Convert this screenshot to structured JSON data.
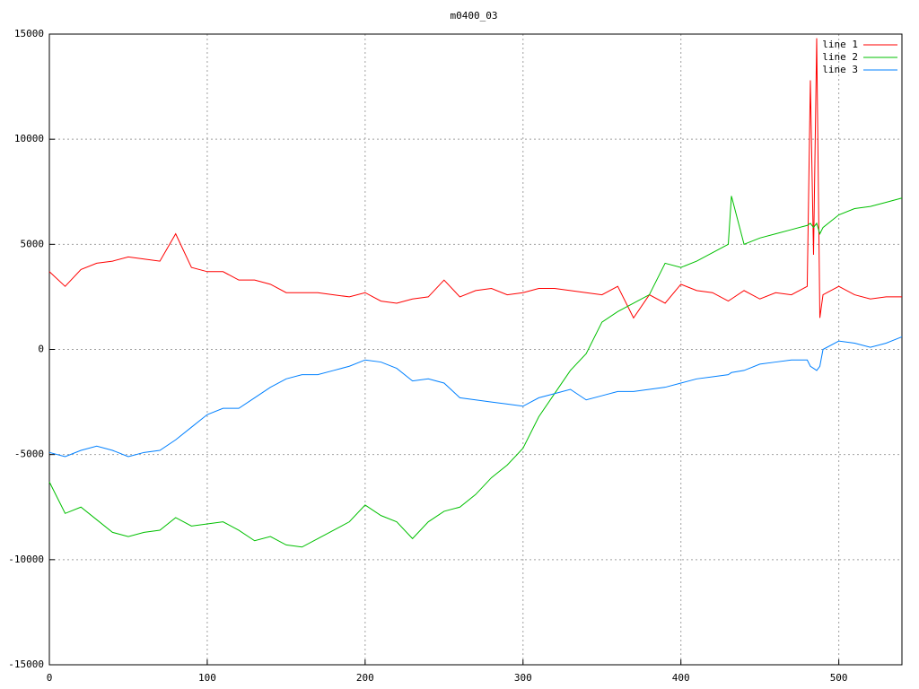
{
  "chart_data": {
    "type": "line",
    "title": "m0400_03",
    "x": [
      0,
      10,
      20,
      30,
      40,
      50,
      60,
      70,
      80,
      90,
      100,
      110,
      120,
      130,
      140,
      150,
      160,
      170,
      180,
      190,
      200,
      210,
      220,
      230,
      240,
      250,
      260,
      270,
      280,
      290,
      300,
      310,
      320,
      330,
      340,
      350,
      360,
      370,
      380,
      390,
      400,
      410,
      420,
      430,
      432,
      440,
      450,
      460,
      470,
      480,
      482,
      484,
      486,
      488,
      490,
      500,
      510,
      520,
      530,
      540
    ],
    "series": [
      {
        "name": "line 1",
        "color": "#ff0000",
        "values": [
          3700,
          3000,
          3800,
          4100,
          4200,
          4400,
          4300,
          4200,
          5500,
          3900,
          3700,
          3700,
          3300,
          3300,
          3100,
          2700,
          2700,
          2700,
          2600,
          2500,
          2700,
          2300,
          2200,
          2400,
          2500,
          3300,
          2500,
          2800,
          2900,
          2600,
          2700,
          2900,
          2900,
          2800,
          2700,
          2600,
          3000,
          1500,
          2600,
          2200,
          3100,
          2800,
          2700,
          2300,
          2400,
          2800,
          2400,
          2700,
          2600,
          3000,
          12800,
          4500,
          14800,
          1500,
          2600,
          3000,
          2600,
          2400,
          2500,
          2500
        ]
      },
      {
        "name": "line 2",
        "color": "#00c000",
        "values": [
          -6300,
          -7800,
          -7500,
          -8100,
          -8700,
          -8900,
          -8700,
          -8600,
          -8000,
          -8400,
          -8300,
          -8200,
          -8600,
          -9100,
          -8900,
          -9300,
          -9400,
          -9000,
          -8600,
          -8200,
          -7400,
          -7900,
          -8200,
          -9000,
          -8200,
          -7700,
          -7500,
          -6900,
          -6100,
          -5500,
          -4700,
          -3200,
          -2100,
          -1000,
          -200,
          1300,
          1800,
          2200,
          2600,
          4100,
          3900,
          4200,
          4600,
          5000,
          7300,
          5000,
          5300,
          5500,
          5700,
          5900,
          6000,
          5800,
          6000,
          5500,
          5800,
          6400,
          6700,
          6800,
          7000,
          7200
        ]
      },
      {
        "name": "line 3",
        "color": "#0080ff",
        "values": [
          -4900,
          -5100,
          -4800,
          -4600,
          -4800,
          -5100,
          -4900,
          -4800,
          -4300,
          -3700,
          -3100,
          -2800,
          -2800,
          -2300,
          -1800,
          -1400,
          -1200,
          -1200,
          -1000,
          -800,
          -500,
          -600,
          -900,
          -1500,
          -1400,
          -1600,
          -2300,
          -2400,
          -2500,
          -2600,
          -2700,
          -2300,
          -2100,
          -1900,
          -2400,
          -2200,
          -2000,
          -2000,
          -1900,
          -1800,
          -1600,
          -1400,
          -1300,
          -1200,
          -1100,
          -1000,
          -700,
          -600,
          -500,
          -500,
          -800,
          -900,
          -1000,
          -800,
          0,
          400,
          300,
          100,
          300,
          600
        ]
      }
    ],
    "xlim": [
      0,
      540
    ],
    "ylim": [
      -15000,
      15000
    ],
    "xticks": [
      0,
      100,
      200,
      300,
      400,
      500
    ],
    "yticks": [
      -15000,
      -10000,
      -5000,
      0,
      5000,
      10000,
      15000
    ],
    "grid": true,
    "legend": "top-right"
  }
}
